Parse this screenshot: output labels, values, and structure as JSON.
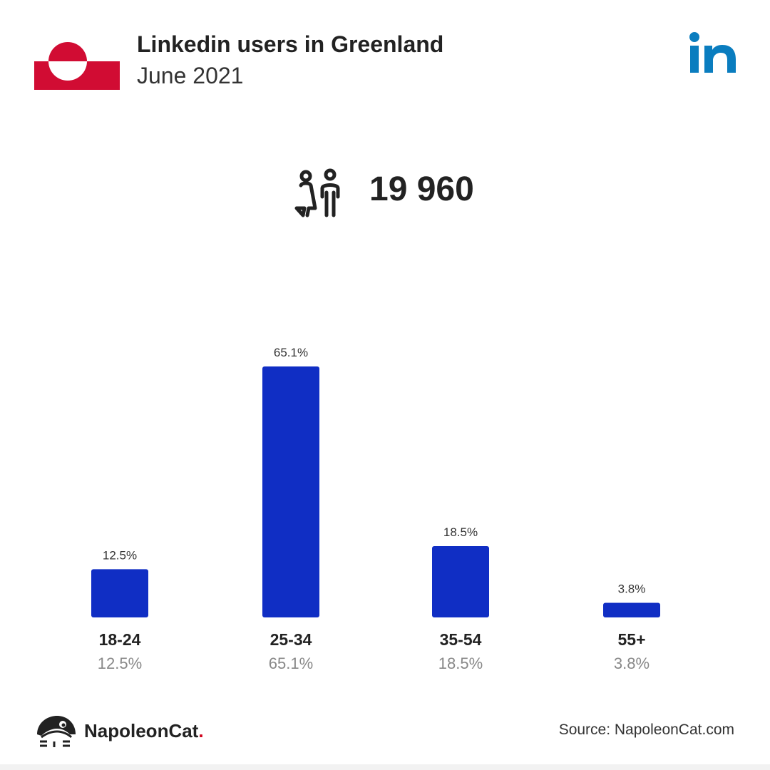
{
  "header": {
    "title": "Linkedin users in Greenland",
    "subtitle": "June 2021",
    "brand_icon": "linkedin-logo-icon",
    "flag_icon": "greenland-flag-icon"
  },
  "summary": {
    "total_users": "19 960",
    "icon": "users-icon"
  },
  "chart_data": {
    "type": "bar",
    "categories": [
      "18-24",
      "25-34",
      "35-54",
      "55+"
    ],
    "values": [
      12.5,
      65.1,
      18.5,
      3.8
    ],
    "value_labels": [
      "12.5%",
      "65.1%",
      "18.5%",
      "3.8%"
    ],
    "title": "",
    "xlabel": "",
    "ylabel": "",
    "ylim": [
      0,
      65.1
    ],
    "grid": false,
    "legend": "none",
    "bar_color": "#102ec4"
  },
  "footer": {
    "brand_name": "NapoleonCat",
    "brand_dot": ".",
    "source": "Source: NapoleonCat.com",
    "brand_icon": "napoleoncat-logo-icon"
  },
  "colors": {
    "flag_red": "#d10c33",
    "linkedin_blue": "#0a7dbf",
    "brand_dot_red": "#d0021b"
  }
}
